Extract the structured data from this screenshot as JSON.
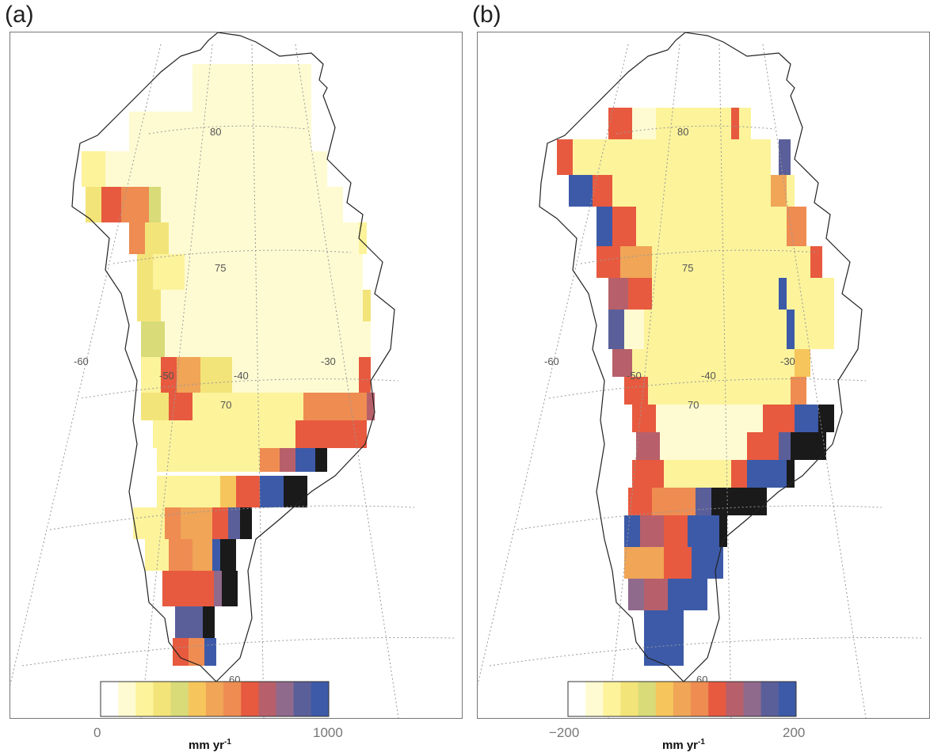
{
  "colorbar_colors": [
    "#ffffff",
    "#fefbd2",
    "#fcf39b",
    "#f3e47a",
    "#d8db78",
    "#f6c55b",
    "#f0a557",
    "#ee8c52",
    "#e75a3f",
    "#b7606b",
    "#8f6a8c",
    "#5a5f9a",
    "#3c5aa8"
  ],
  "panels": [
    {
      "label": "(a)",
      "colorbar": {
        "min_label": "0",
        "max_label": "1000",
        "unit": "mm yr",
        "unit_exp": "-1"
      },
      "grid_labels": {
        "lon": [
          "-60",
          "-50",
          "-40",
          "-30"
        ],
        "lat": [
          "80",
          "75",
          "70",
          "60"
        ]
      }
    },
    {
      "label": "(b)",
      "colorbar": {
        "min_label": "−200",
        "max_label": "200",
        "unit": "mm yr",
        "unit_exp": "-1"
      },
      "grid_labels": {
        "lon": [
          "-60",
          "-50",
          "-40",
          "-30"
        ],
        "lat": [
          "80",
          "75",
          "70",
          "60"
        ]
      }
    }
  ]
}
